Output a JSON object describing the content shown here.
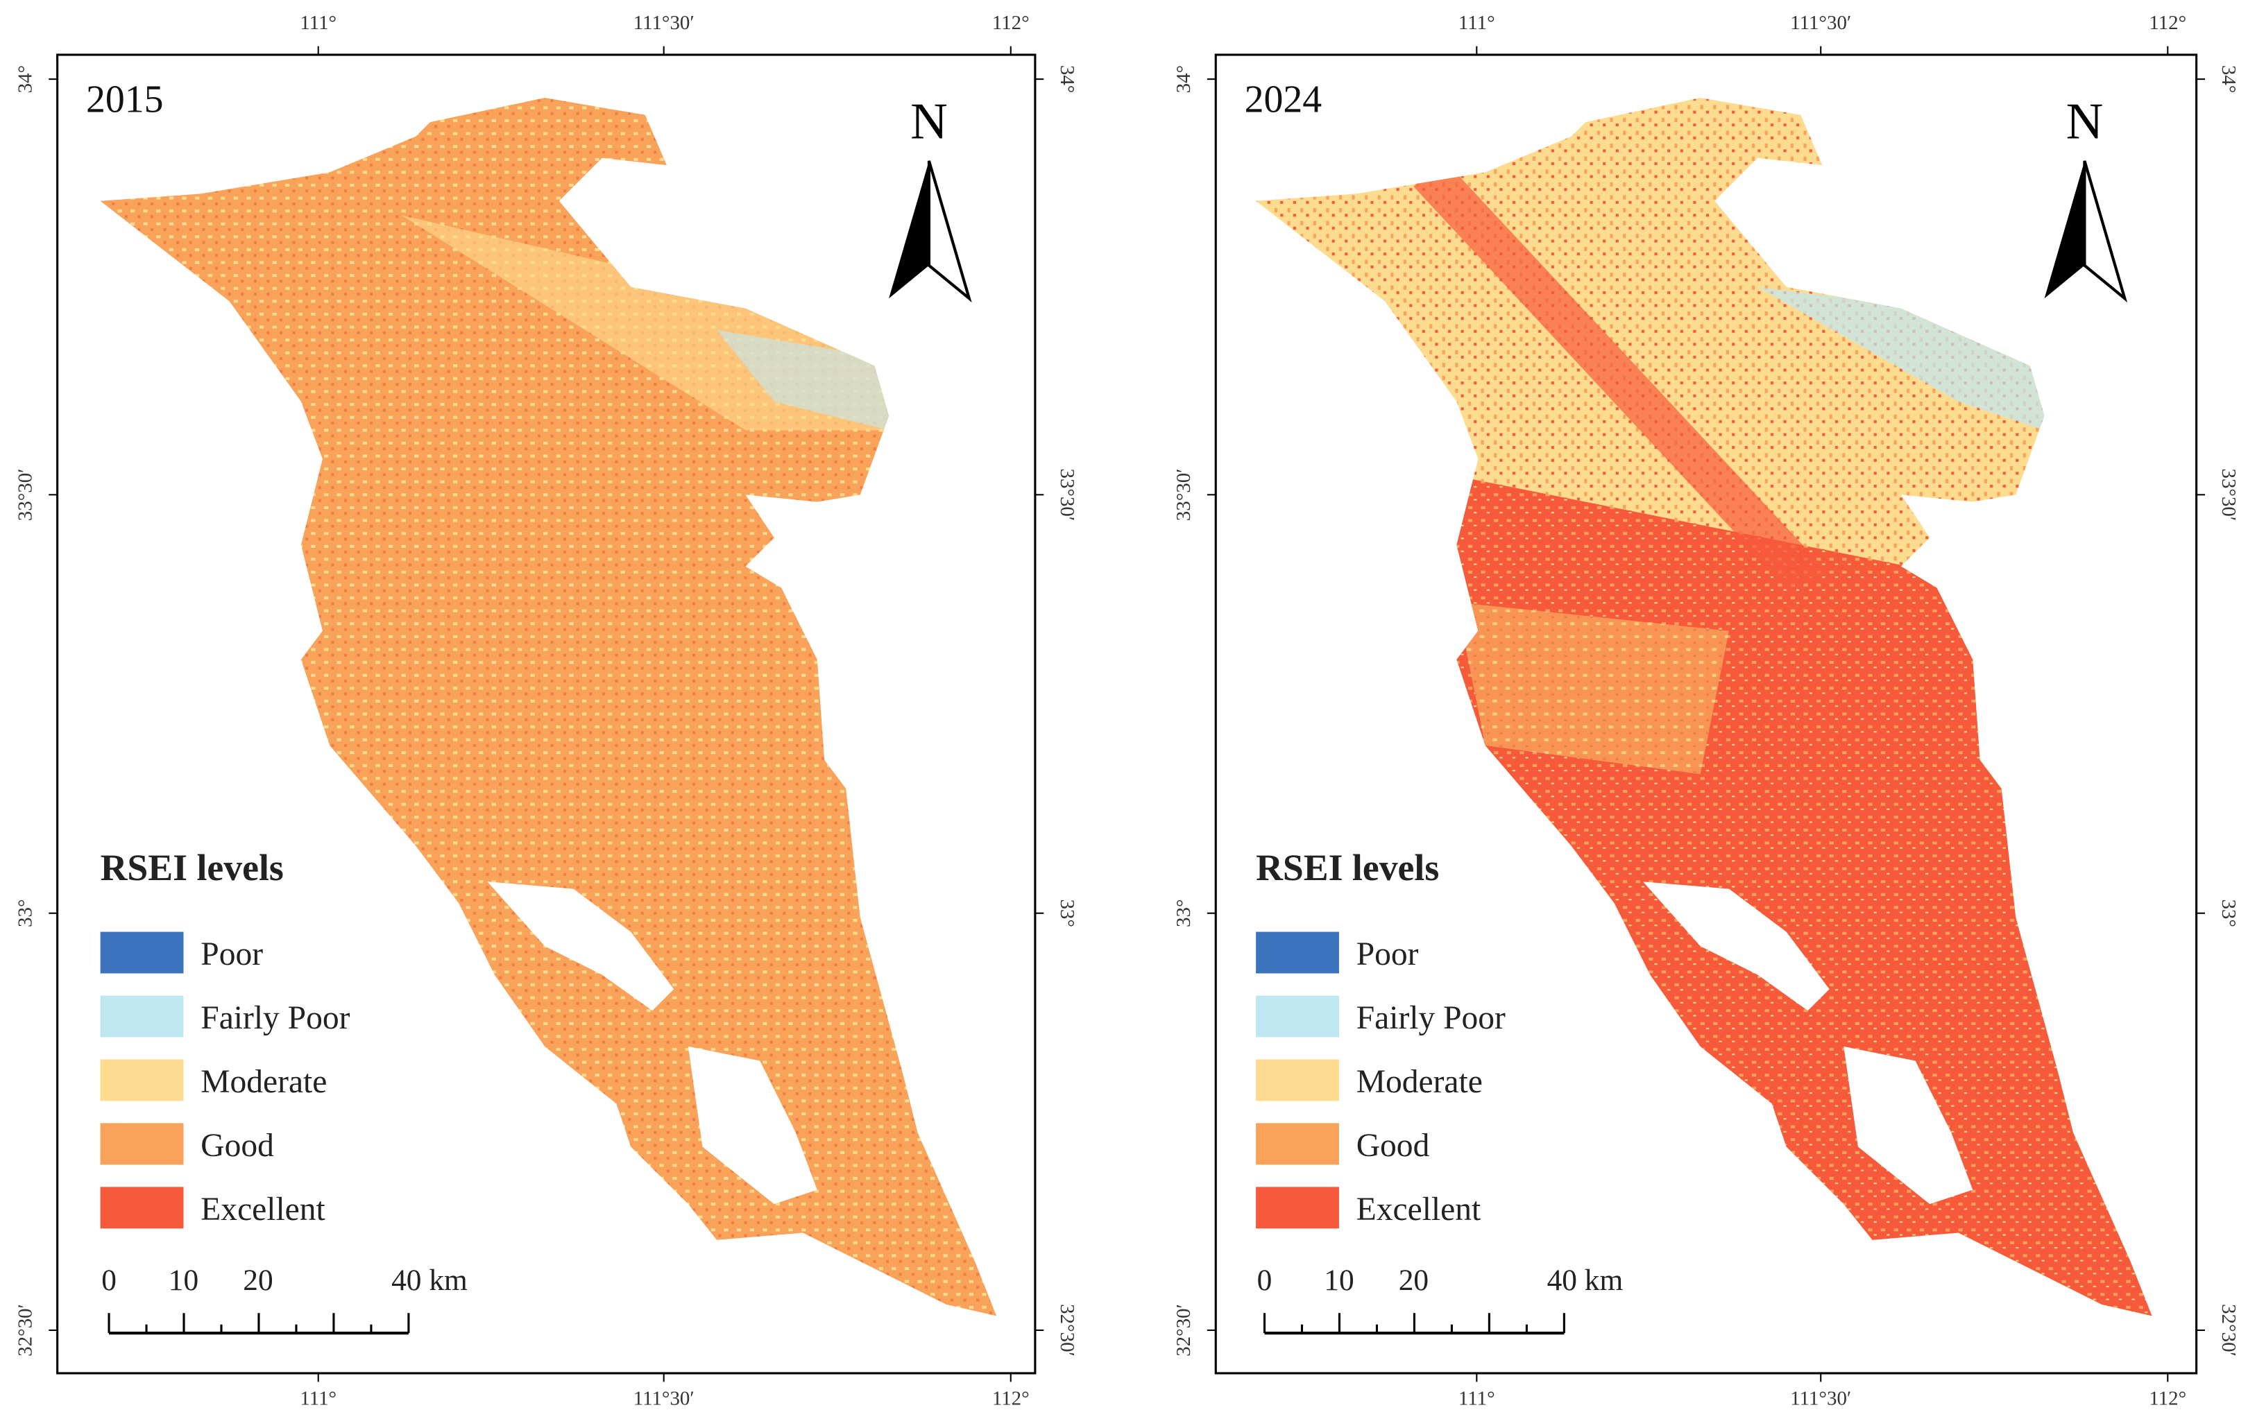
{
  "panels": [
    {
      "year": "2015",
      "north": "N",
      "legend": {
        "title": "RSEI levels",
        "items": [
          {
            "label": "Poor",
            "color": "#3b74bd"
          },
          {
            "label": "Fairly Poor",
            "color": "#bfe7f2"
          },
          {
            "label": "Moderate",
            "color": "#fddc90"
          },
          {
            "label": "Good",
            "color": "#f9a35a"
          },
          {
            "label": "Excellent",
            "color": "#f65a3a"
          }
        ]
      },
      "scale": [
        "0",
        "10",
        "20",
        "40 km"
      ],
      "top_ticks": [
        "111°",
        "111°30′",
        "112°"
      ],
      "bottom_ticks": [
        "111°",
        "111°30′",
        "112°"
      ],
      "left_ticks": [
        "34°",
        "33°30′",
        "33°",
        "32°30′"
      ],
      "right_ticks": [
        "34°",
        "33°30′",
        "33°",
        "32°30′"
      ]
    },
    {
      "year": "2024",
      "north": "N",
      "legend": {
        "title": "RSEI levels",
        "items": [
          {
            "label": "Poor",
            "color": "#3b74bd"
          },
          {
            "label": "Fairly Poor",
            "color": "#bfe7f2"
          },
          {
            "label": "Moderate",
            "color": "#fddc90"
          },
          {
            "label": "Good",
            "color": "#f9a35a"
          },
          {
            "label": "Excellent",
            "color": "#f65a3a"
          }
        ]
      },
      "scale": [
        "0",
        "10",
        "20",
        "40 km"
      ],
      "top_ticks": [
        "111°",
        "111°30′",
        "112°"
      ],
      "bottom_ticks": [
        "111°",
        "111°30′",
        "112°"
      ],
      "left_ticks": [
        "34°",
        "33°30′",
        "33°",
        "32°30′"
      ],
      "right_ticks": [
        "34°",
        "33°30′",
        "33°",
        "32°30′"
      ]
    }
  ]
}
